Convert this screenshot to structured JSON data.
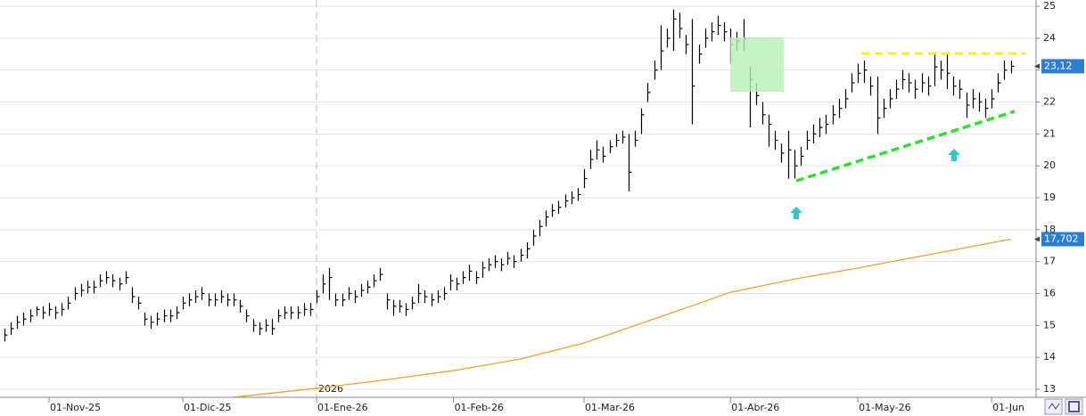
{
  "chart_data": {
    "type": "ohlc",
    "xlim": [
      -0.7,
      161.7
    ],
    "ylim": [
      13,
      25
    ],
    "yticks": [
      13,
      14,
      15,
      16,
      17,
      18,
      19,
      20,
      21,
      22,
      23,
      24,
      25
    ],
    "xticks": [
      {
        "value": 7,
        "label": "01-Nov-25"
      },
      {
        "value": 28,
        "label": "01-Dic-25"
      },
      {
        "value": 49,
        "label": "01-Ene-26"
      },
      {
        "value": 70.5,
        "label": "01-Feb-26"
      },
      {
        "value": 91,
        "label": "01-Mar-26"
      },
      {
        "value": 114,
        "label": "01-Abr-26"
      },
      {
        "value": 134,
        "label": "01-May-26"
      },
      {
        "value": 155,
        "label": "01-Jun"
      }
    ],
    "year_marker": {
      "value": 49,
      "label": "2026"
    },
    "grid": true,
    "bar_color": "#000000",
    "close": [
      14.7,
      14.9,
      15.1,
      15.2,
      15.3,
      15.5,
      15.4,
      15.5,
      15.4,
      15.5,
      15.7,
      16.0,
      16.1,
      16.2,
      16.2,
      16.4,
      16.5,
      16.4,
      16.3,
      16.5,
      15.9,
      15.7,
      15.2,
      15.1,
      15.2,
      15.3,
      15.3,
      15.4,
      15.7,
      15.8,
      15.9,
      16.0,
      15.8,
      15.8,
      15.9,
      15.8,
      15.8,
      15.6,
      15.3,
      15.0,
      14.9,
      15.0,
      14.9,
      15.3,
      15.4,
      15.4,
      15.4,
      15.5,
      15.5,
      15.9,
      16.3,
      16.5,
      15.8,
      15.8,
      16.0,
      15.9,
      16.1,
      16.2,
      16.4,
      16.6,
      15.8,
      15.6,
      15.6,
      15.5,
      15.7,
      16.0,
      15.9,
      15.8,
      15.9,
      16.0,
      16.4,
      16.3,
      16.5,
      16.7,
      16.5,
      16.8,
      16.9,
      17.0,
      16.9,
      17.1,
      17.0,
      17.2,
      17.4,
      17.8,
      18.1,
      18.4,
      18.6,
      18.7,
      18.9,
      19.0,
      19.1,
      19.6,
      20.2,
      20.5,
      20.3,
      20.6,
      20.8,
      20.9,
      19.8,
      20.8,
      21.6,
      22.3,
      23.0,
      23.6,
      24.0,
      24.6,
      24.3,
      23.8,
      22.5,
      23.5,
      24.0,
      24.2,
      24.4,
      24.2,
      23.8,
      23.9,
      24.0,
      22.7,
      22.2,
      21.6,
      21.3,
      20.8,
      20.4,
      20.5,
      20.0,
      20.3,
      20.8,
      21.0,
      21.2,
      21.3,
      21.6,
      21.8,
      22.1,
      22.6,
      22.9,
      23.0,
      22.5,
      21.5,
      21.8,
      22.1,
      22.4,
      22.7,
      22.6,
      22.4,
      22.6,
      22.5,
      23.1,
      23.0,
      22.9,
      22.5,
      22.4,
      21.9,
      22.1,
      22.0,
      21.8,
      22.1,
      22.6,
      23.0,
      23.12
    ],
    "high": [
      14.9,
      15.1,
      15.3,
      15.4,
      15.5,
      15.6,
      15.6,
      15.7,
      15.6,
      15.7,
      15.9,
      16.2,
      16.3,
      16.4,
      16.4,
      16.6,
      16.7,
      16.6,
      16.5,
      16.7,
      16.2,
      15.9,
      15.4,
      15.3,
      15.4,
      15.5,
      15.5,
      15.6,
      15.9,
      16.0,
      16.1,
      16.2,
      16.0,
      16.0,
      16.1,
      16.0,
      16.0,
      15.8,
      15.5,
      15.2,
      15.1,
      15.2,
      15.2,
      15.5,
      15.6,
      15.6,
      15.6,
      15.7,
      15.7,
      16.1,
      16.6,
      16.8,
      16.0,
      16.0,
      16.2,
      16.1,
      16.3,
      16.4,
      16.6,
      16.8,
      16.0,
      15.8,
      15.8,
      15.7,
      15.9,
      16.3,
      16.1,
      16.0,
      16.1,
      16.2,
      16.6,
      16.5,
      16.7,
      16.9,
      16.7,
      17.0,
      17.1,
      17.2,
      17.1,
      17.3,
      17.2,
      17.4,
      17.6,
      18.0,
      18.3,
      18.6,
      18.8,
      18.9,
      19.1,
      19.2,
      19.3,
      19.9,
      20.5,
      20.8,
      20.6,
      20.8,
      21.0,
      21.1,
      21.0,
      21.1,
      21.8,
      22.6,
      23.3,
      24.4,
      24.3,
      24.9,
      24.8,
      24.1,
      24.6,
      23.8,
      24.3,
      24.5,
      24.7,
      24.5,
      24.3,
      24.2,
      24.6,
      23.1,
      22.6,
      22.0,
      21.6,
      21.1,
      20.7,
      21.1,
      20.5,
      20.6,
      21.1,
      21.3,
      21.5,
      21.6,
      21.9,
      22.1,
      22.4,
      22.9,
      23.2,
      23.3,
      22.8,
      22.8,
      22.1,
      22.4,
      22.7,
      23.0,
      22.9,
      22.7,
      22.9,
      22.8,
      23.5,
      23.3,
      23.5,
      22.8,
      22.7,
      22.3,
      22.4,
      22.3,
      22.1,
      22.4,
      22.9,
      23.3,
      23.3
    ],
    "low": [
      14.5,
      14.7,
      14.9,
      15.0,
      15.1,
      15.3,
      15.2,
      15.3,
      15.2,
      15.3,
      15.5,
      15.8,
      15.9,
      16.0,
      16.0,
      16.2,
      16.3,
      16.2,
      16.1,
      16.3,
      15.7,
      15.5,
      15.0,
      14.9,
      15.0,
      15.1,
      15.1,
      15.2,
      15.5,
      15.6,
      15.7,
      15.8,
      15.6,
      15.6,
      15.7,
      15.6,
      15.6,
      15.4,
      15.1,
      14.8,
      14.7,
      14.8,
      14.7,
      15.1,
      15.2,
      15.2,
      15.2,
      15.3,
      15.3,
      15.7,
      16.0,
      15.8,
      15.6,
      15.6,
      15.8,
      15.7,
      15.9,
      16.0,
      16.2,
      16.4,
      15.5,
      15.3,
      15.4,
      15.3,
      15.5,
      15.7,
      15.7,
      15.6,
      15.7,
      15.8,
      16.1,
      16.1,
      16.3,
      16.4,
      16.3,
      16.5,
      16.7,
      16.8,
      16.7,
      16.9,
      16.8,
      17.0,
      17.1,
      17.5,
      17.8,
      18.1,
      18.4,
      18.5,
      18.7,
      18.8,
      18.9,
      19.3,
      19.9,
      20.2,
      20.1,
      20.4,
      20.6,
      20.7,
      19.2,
      20.6,
      21.0,
      22.0,
      22.7,
      23.0,
      23.7,
      23.6,
      24.0,
      23.5,
      21.3,
      23.2,
      23.7,
      23.9,
      24.1,
      23.9,
      23.2,
      23.6,
      23.6,
      21.2,
      21.9,
      21.3,
      20.6,
      20.5,
      20.1,
      19.6,
      19.6,
      20.0,
      20.5,
      20.7,
      20.9,
      21.0,
      21.3,
      21.5,
      21.8,
      22.3,
      22.6,
      22.6,
      22.2,
      21.0,
      21.5,
      21.8,
      22.1,
      22.4,
      22.3,
      22.1,
      22.3,
      22.2,
      22.5,
      22.7,
      22.4,
      22.2,
      22.1,
      21.5,
      21.8,
      21.7,
      21.5,
      21.8,
      22.3,
      22.7,
      22.9
    ],
    "moving_average": {
      "color": "#f0a030",
      "x": [
        36,
        49,
        60,
        71,
        81,
        91,
        102,
        114,
        124,
        134,
        146,
        158
      ],
      "values": [
        12.75,
        13.03,
        13.3,
        13.6,
        13.95,
        14.45,
        15.2,
        16.04,
        16.45,
        16.8,
        17.25,
        17.702
      ]
    },
    "last_price": {
      "value": 23.12,
      "label": "23,12"
    },
    "ma_last": {
      "value": 17.702,
      "label": "17,702"
    }
  }
}
